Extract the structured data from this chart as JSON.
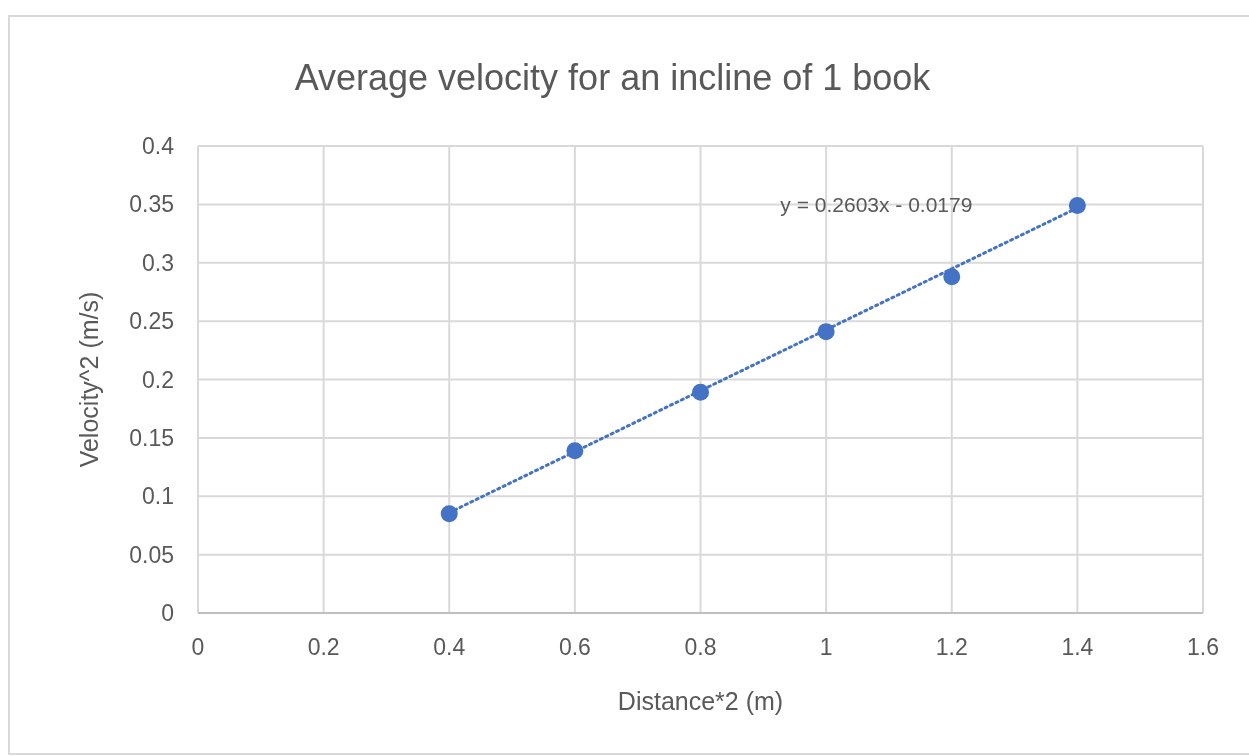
{
  "chart_data": {
    "type": "scatter",
    "title": "Average velocity for an incline of 1 book",
    "xlabel": "Distance*2 (m)",
    "ylabel": "Velocity^2 (m/s)",
    "xlim": [
      0,
      1.6
    ],
    "xticks": [
      0,
      0.2,
      0.4,
      0.6,
      0.8,
      1,
      1.2,
      1.4,
      1.6
    ],
    "ylim": [
      0,
      0.4
    ],
    "yticks": [
      0,
      0.05,
      0.1,
      0.15,
      0.2,
      0.25,
      0.3,
      0.35,
      0.4
    ],
    "grid": true,
    "series": [
      {
        "color": "#4472c4",
        "marker": "circle",
        "x": [
          0.4,
          0.6,
          0.8,
          1,
          1.2,
          1.4
        ],
        "values": [
          0.085,
          0.139,
          0.189,
          0.241,
          0.288,
          0.349
        ]
      },
      {
        "type": "line",
        "color": "#4472c4",
        "marker": "none",
        "line_style": "dotted",
        "x": [
          0.4,
          1.4
        ],
        "values": [
          0.086,
          0.347
        ]
      }
    ],
    "annotations": [
      "y = 0.2603x - 0.0179"
    ]
  }
}
